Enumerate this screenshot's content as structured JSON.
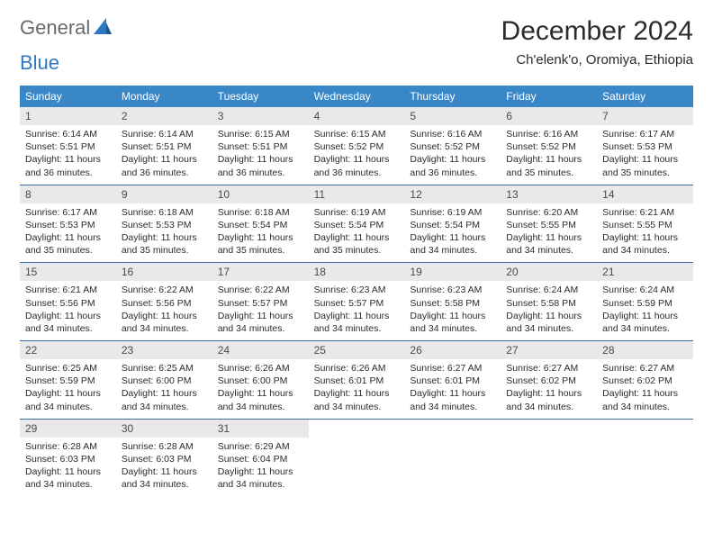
{
  "brand": {
    "part1": "General",
    "part2": "Blue"
  },
  "title": "December 2024",
  "location": "Ch'elenk'o, Oromiya, Ethiopia",
  "colors": {
    "header_bg": "#3a87c8",
    "header_text": "#ffffff",
    "daynum_bg": "#e9e9e9",
    "week_divider": "#3a6fa5",
    "brand_gray": "#6a6a6a",
    "brand_blue": "#2f79c2",
    "body_text": "#2b2b2b"
  },
  "typography": {
    "title_fontsize": 30,
    "location_fontsize": 15,
    "dow_fontsize": 12,
    "daynum_fontsize": 12,
    "body_fontsize": 10.5
  },
  "days_of_week": [
    "Sunday",
    "Monday",
    "Tuesday",
    "Wednesday",
    "Thursday",
    "Friday",
    "Saturday"
  ],
  "weeks": [
    [
      {
        "n": "1",
        "sunrise": "6:14 AM",
        "sunset": "5:51 PM",
        "daylight": "11 hours and 36 minutes."
      },
      {
        "n": "2",
        "sunrise": "6:14 AM",
        "sunset": "5:51 PM",
        "daylight": "11 hours and 36 minutes."
      },
      {
        "n": "3",
        "sunrise": "6:15 AM",
        "sunset": "5:51 PM",
        "daylight": "11 hours and 36 minutes."
      },
      {
        "n": "4",
        "sunrise": "6:15 AM",
        "sunset": "5:52 PM",
        "daylight": "11 hours and 36 minutes."
      },
      {
        "n": "5",
        "sunrise": "6:16 AM",
        "sunset": "5:52 PM",
        "daylight": "11 hours and 36 minutes."
      },
      {
        "n": "6",
        "sunrise": "6:16 AM",
        "sunset": "5:52 PM",
        "daylight": "11 hours and 35 minutes."
      },
      {
        "n": "7",
        "sunrise": "6:17 AM",
        "sunset": "5:53 PM",
        "daylight": "11 hours and 35 minutes."
      }
    ],
    [
      {
        "n": "8",
        "sunrise": "6:17 AM",
        "sunset": "5:53 PM",
        "daylight": "11 hours and 35 minutes."
      },
      {
        "n": "9",
        "sunrise": "6:18 AM",
        "sunset": "5:53 PM",
        "daylight": "11 hours and 35 minutes."
      },
      {
        "n": "10",
        "sunrise": "6:18 AM",
        "sunset": "5:54 PM",
        "daylight": "11 hours and 35 minutes."
      },
      {
        "n": "11",
        "sunrise": "6:19 AM",
        "sunset": "5:54 PM",
        "daylight": "11 hours and 35 minutes."
      },
      {
        "n": "12",
        "sunrise": "6:19 AM",
        "sunset": "5:54 PM",
        "daylight": "11 hours and 34 minutes."
      },
      {
        "n": "13",
        "sunrise": "6:20 AM",
        "sunset": "5:55 PM",
        "daylight": "11 hours and 34 minutes."
      },
      {
        "n": "14",
        "sunrise": "6:21 AM",
        "sunset": "5:55 PM",
        "daylight": "11 hours and 34 minutes."
      }
    ],
    [
      {
        "n": "15",
        "sunrise": "6:21 AM",
        "sunset": "5:56 PM",
        "daylight": "11 hours and 34 minutes."
      },
      {
        "n": "16",
        "sunrise": "6:22 AM",
        "sunset": "5:56 PM",
        "daylight": "11 hours and 34 minutes."
      },
      {
        "n": "17",
        "sunrise": "6:22 AM",
        "sunset": "5:57 PM",
        "daylight": "11 hours and 34 minutes."
      },
      {
        "n": "18",
        "sunrise": "6:23 AM",
        "sunset": "5:57 PM",
        "daylight": "11 hours and 34 minutes."
      },
      {
        "n": "19",
        "sunrise": "6:23 AM",
        "sunset": "5:58 PM",
        "daylight": "11 hours and 34 minutes."
      },
      {
        "n": "20",
        "sunrise": "6:24 AM",
        "sunset": "5:58 PM",
        "daylight": "11 hours and 34 minutes."
      },
      {
        "n": "21",
        "sunrise": "6:24 AM",
        "sunset": "5:59 PM",
        "daylight": "11 hours and 34 minutes."
      }
    ],
    [
      {
        "n": "22",
        "sunrise": "6:25 AM",
        "sunset": "5:59 PM",
        "daylight": "11 hours and 34 minutes."
      },
      {
        "n": "23",
        "sunrise": "6:25 AM",
        "sunset": "6:00 PM",
        "daylight": "11 hours and 34 minutes."
      },
      {
        "n": "24",
        "sunrise": "6:26 AM",
        "sunset": "6:00 PM",
        "daylight": "11 hours and 34 minutes."
      },
      {
        "n": "25",
        "sunrise": "6:26 AM",
        "sunset": "6:01 PM",
        "daylight": "11 hours and 34 minutes."
      },
      {
        "n": "26",
        "sunrise": "6:27 AM",
        "sunset": "6:01 PM",
        "daylight": "11 hours and 34 minutes."
      },
      {
        "n": "27",
        "sunrise": "6:27 AM",
        "sunset": "6:02 PM",
        "daylight": "11 hours and 34 minutes."
      },
      {
        "n": "28",
        "sunrise": "6:27 AM",
        "sunset": "6:02 PM",
        "daylight": "11 hours and 34 minutes."
      }
    ],
    [
      {
        "n": "29",
        "sunrise": "6:28 AM",
        "sunset": "6:03 PM",
        "daylight": "11 hours and 34 minutes."
      },
      {
        "n": "30",
        "sunrise": "6:28 AM",
        "sunset": "6:03 PM",
        "daylight": "11 hours and 34 minutes."
      },
      {
        "n": "31",
        "sunrise": "6:29 AM",
        "sunset": "6:04 PM",
        "daylight": "11 hours and 34 minutes."
      },
      null,
      null,
      null,
      null
    ]
  ],
  "labels": {
    "sunrise": "Sunrise:",
    "sunset": "Sunset:",
    "daylight": "Daylight:"
  }
}
